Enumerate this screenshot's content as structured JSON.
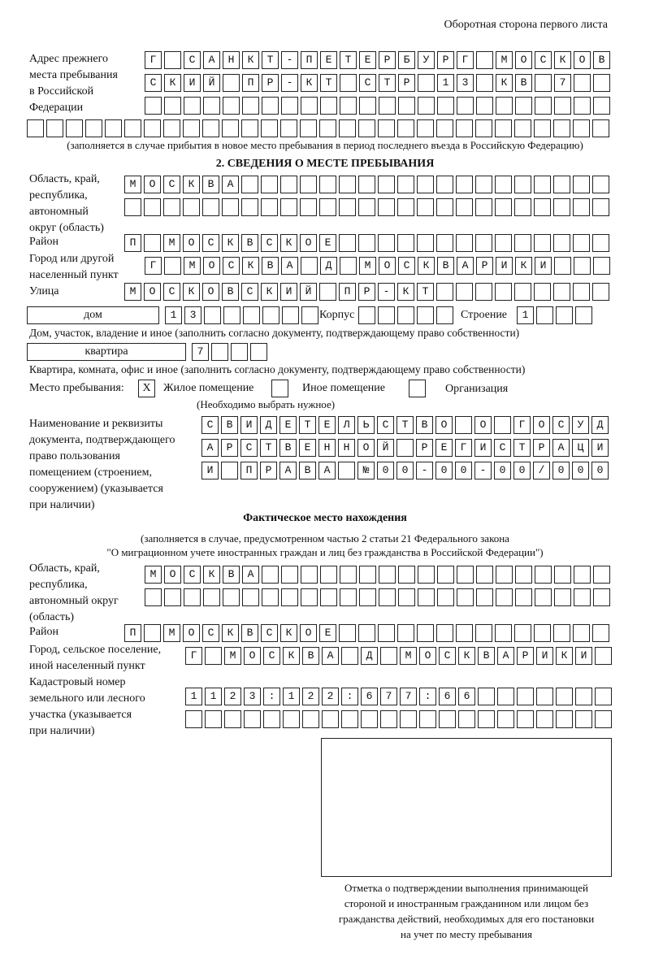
{
  "header_note": "Оборотная сторона первого листа",
  "previous_address": {
    "label": [
      "Адрес прежнего",
      "места пребывания",
      "в Российской",
      "Федерации"
    ],
    "rows": [
      "Г САНКТ-ПЕТЕРБУРГ МОСКОВ",
      "СКИЙ ПР-КТ СТР 13 КВ 7",
      "",
      ""
    ],
    "note": "(заполняется в случае прибытия в новое место пребывания в период последнего въезда в Российскую Федерацию)"
  },
  "section2": {
    "title": "2. СВЕДЕНИЯ О МЕСТЕ ПРЕБЫВАНИЯ",
    "region_label": [
      "Область, край,",
      "республика,",
      "автономный",
      "округ (область)"
    ],
    "region_rows": [
      "МОСКВА",
      ""
    ],
    "district_label": "Район",
    "district": "П МОСКВСКОЕ",
    "city_label": [
      "Город или другой",
      "населенный пункт"
    ],
    "city": "Г МОСКВА Д МОСКВАРИКИ",
    "street_label": "Улица",
    "street": "МОСКОВСКИЙ ПР-КТ",
    "house_type": "дом",
    "house_number": "13",
    "building_label": "Корпус",
    "building": "",
    "structure_label": "Строение",
    "structure": "1",
    "house_caption": "Дом, участок, владение и иное (заполнить согласно документу, подтверждающему право собственности)",
    "apartment_type": "квартира",
    "apartment_number": "7",
    "apartment_caption": "Квартира, комната, офис и иное (заполнить согласно документу, подтверждающему право собственности)",
    "stay_place_label": "Место пребывания:",
    "stay_options": [
      {
        "label": "Жилое помещение",
        "mark": "X"
      },
      {
        "label": "Иное помещение",
        "mark": ""
      },
      {
        "label": "Организация",
        "mark": ""
      }
    ],
    "stay_hint": "(Необходимо выбрать нужное)",
    "document_label": [
      "Наименование и реквизиты",
      "документа, подтверждающего",
      "право пользования",
      "помещением (строением,",
      "сооружением) (указывается",
      "при наличии)"
    ],
    "document_rows": [
      "СВИДЕТЕЛЬСТВО О ГОСУД",
      "АРСТВЕННОЙ РЕГИСТРАЦИ",
      "И ПРАВА №00-00-00/000"
    ]
  },
  "actual_location": {
    "title": "Фактическое место нахождения",
    "note": [
      "(заполняется в случае, предусмотренном частью 2 статьи 21 Федерального закона",
      "\"О миграционном учете иностранных граждан и лиц без гражданства в Российской Федерации\")"
    ],
    "region_label": [
      "Область, край,",
      "республика,",
      "автономный округ",
      "(область)"
    ],
    "region_rows": [
      "МОСКВА",
      ""
    ],
    "district_label": "Район",
    "district": "П МОСКВСКОЕ",
    "city_label": [
      "Город, сельское поселение,",
      "иной населенный пункт"
    ],
    "city": "Г МОСКВА Д МОСКВАРИКИ",
    "cadastral_label": [
      "Кадастровый номер",
      "земельного или лесного",
      "участка (указывается",
      "при наличии)"
    ],
    "cadastral_rows": [
      "1123:122:677:66",
      ""
    ]
  },
  "confirmation": {
    "caption": [
      "Отметка о подтверждении выполнения принимающей",
      "стороной и иностранным гражданином или лицом без",
      "гражданства действий, необходимых для его постановки",
      "на учет по месту пребывания"
    ]
  }
}
